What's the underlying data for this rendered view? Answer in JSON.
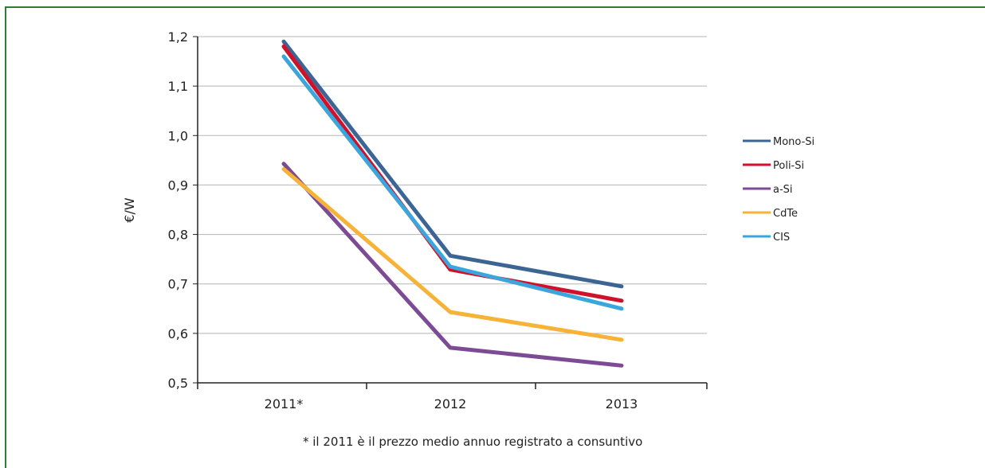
{
  "chart_data": {
    "type": "line",
    "x": [
      "2011*",
      "2012",
      "2013"
    ],
    "ylabel": "€/W",
    "ylim": [
      0.5,
      1.2
    ],
    "yticks": [
      "0,5",
      "0,6",
      "0,7",
      "0,8",
      "0,9",
      "1,0",
      "1,1",
      "1,2"
    ],
    "ytick_values": [
      0.5,
      0.6,
      0.7,
      0.8,
      0.9,
      1.0,
      1.1,
      1.2
    ],
    "grid": true,
    "legend_position": "right",
    "series": [
      {
        "name": "Mono-Si",
        "color": "#3d6594",
        "values": [
          1.19,
          0.757,
          0.695
        ]
      },
      {
        "name": "Poli-Si",
        "color": "#d0112b",
        "values": [
          1.18,
          0.729,
          0.666
        ]
      },
      {
        "name": "a-Si",
        "color": "#7d4b96",
        "values": [
          0.943,
          0.571,
          0.535
        ]
      },
      {
        "name": "CdTe",
        "color": "#f6b337",
        "values": [
          0.932,
          0.643,
          0.587
        ]
      },
      {
        "name": "CIS",
        "color": "#3aa6dc",
        "values": [
          1.16,
          0.735,
          0.65
        ]
      }
    ],
    "footnote": "* il 2011 è il prezzo medio annuo registrato a consuntivo"
  }
}
